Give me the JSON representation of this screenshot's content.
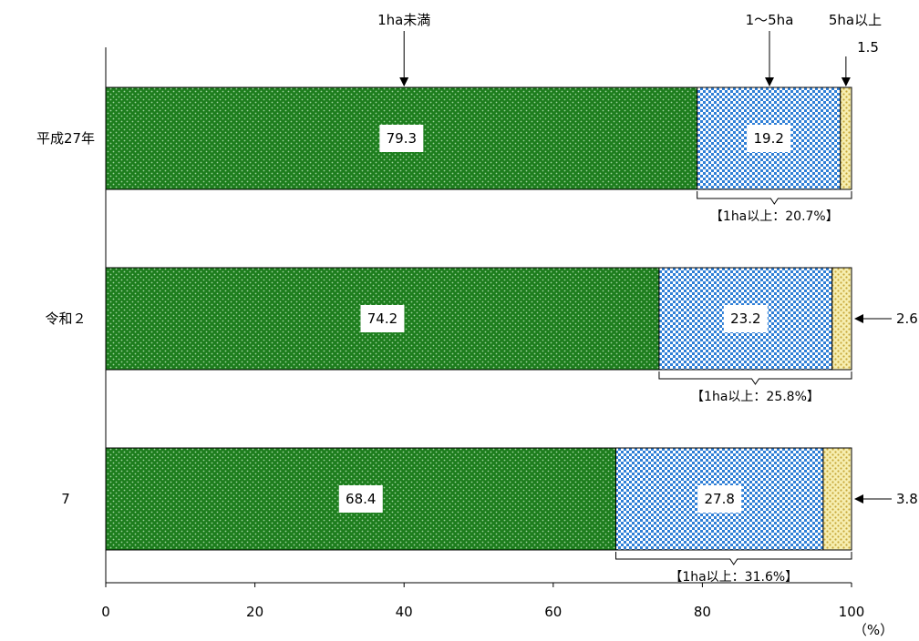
{
  "chart_data": {
    "type": "bar",
    "orientation": "horizontal",
    "stacked": true,
    "categories": [
      "平成27年",
      "令和２",
      "7"
    ],
    "series": [
      {
        "name": "1ha未満",
        "values": [
          79.3,
          74.2,
          68.4
        ],
        "labels": [
          "79.3",
          "74.2",
          "68.4"
        ]
      },
      {
        "name": "1～5ha",
        "values": [
          19.2,
          23.2,
          27.8
        ],
        "labels": [
          "19.2",
          "23.2",
          "27.8"
        ]
      },
      {
        "name": "5ha以上",
        "values": [
          1.5,
          2.6,
          3.8
        ],
        "labels": [
          "1.5",
          "2.6",
          "3.8"
        ]
      }
    ],
    "subtotals": [
      "【1ha以上：20.7%】",
      "【1ha以上：25.8%】",
      "【1ha以上：31.6%】"
    ],
    "xlim": [
      0,
      100
    ],
    "xticks": [
      "0",
      "20",
      "40",
      "60",
      "80",
      "100"
    ],
    "xunit": "（%）",
    "colors": {
      "s0": "#1a7a1a",
      "s1": "#3a86d8",
      "s2": "#efe08a"
    }
  }
}
